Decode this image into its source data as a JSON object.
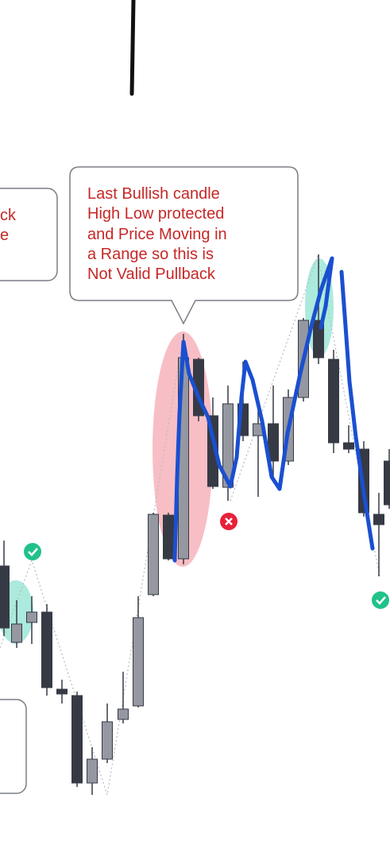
{
  "callouts": [
    {
      "lines": [
        "ck",
        "e"
      ]
    },
    {
      "lines": [
        "Last Bullish candle",
        "High Low protected",
        "and Price Moving in",
        "a Range so this is",
        "Not Valid Pullback"
      ]
    }
  ]
}
